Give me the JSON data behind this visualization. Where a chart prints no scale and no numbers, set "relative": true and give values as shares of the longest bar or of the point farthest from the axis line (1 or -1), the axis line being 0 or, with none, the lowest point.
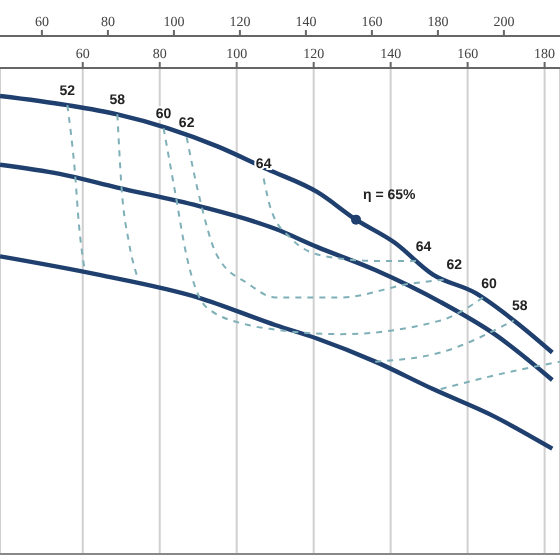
{
  "chart_data": {
    "type": "line",
    "relative": true,
    "xlim": [
      38.5,
      184
    ],
    "xticks": [
      60,
      80,
      100,
      120,
      140,
      160,
      180
    ],
    "x2lim": [
      47.3,
      217
    ],
    "x2ticks": [
      60,
      80,
      100,
      120,
      140,
      160,
      180,
      200
    ],
    "grid": "x",
    "marker": "none",
    "line_style": "solid",
    "series": [
      {
        "color": "#1f3f6e",
        "x": [
          38.5,
          56,
          69,
          82,
          95,
          108,
          121,
          131,
          141,
          151,
          162,
          172,
          182
        ],
        "values": [
          1.0,
          0.98,
          0.96,
          0.93,
          0.89,
          0.84,
          0.79,
          0.73,
          0.68,
          0.61,
          0.57,
          0.51,
          0.44
        ]
      },
      {
        "color": "#1f3f6e",
        "x": [
          38.5,
          54,
          69,
          90,
          110,
          121,
          136,
          153,
          167,
          182
        ],
        "values": [
          0.85,
          0.83,
          0.8,
          0.76,
          0.71,
          0.67,
          0.62,
          0.55,
          0.48,
          0.38
        ]
      },
      {
        "color": "#1f3f6e",
        "x": [
          38.5,
          64,
          90,
          110,
          121,
          136,
          151,
          167,
          182
        ],
        "values": [
          0.65,
          0.61,
          0.56,
          0.5,
          0.47,
          0.42,
          0.36,
          0.3,
          0.23
        ]
      },
      {
        "name": "52",
        "color": "#7fb0b8",
        "line_style": "dashed",
        "x": [
          56,
          58,
          59,
          60.5,
          100,
          153,
          167,
          184
        ],
        "values": [
          0.98,
          0.83,
          0.72,
          0.62,
          null,
          0.36,
          0.39,
          0.42
        ]
      },
      {
        "name": "58",
        "color": "#7fb0b8",
        "line_style": "dashed",
        "x": [
          69,
          70,
          72,
          74,
          100,
          136,
          153,
          172
        ],
        "values": [
          0.96,
          0.81,
          0.68,
          0.61,
          null,
          0.42,
          0.44,
          0.51
        ]
      },
      {
        "name": "60",
        "color": "#7fb0b8",
        "line_style": "dashed",
        "x": [
          81,
          84,
          87,
          92,
          103,
          110,
          127,
          153,
          164
        ],
        "values": [
          0.93,
          0.79,
          0.65,
          0.54,
          0.5,
          0.49,
          0.48,
          0.51,
          0.56
        ]
      },
      {
        "name": "62",
        "color": "#7fb0b8",
        "line_style": "dashed",
        "x": [
          87,
          90,
          95,
          103,
          110,
          127,
          145,
          155
        ],
        "values": [
          0.91,
          0.79,
          0.65,
          0.59,
          0.56,
          0.56,
          0.59,
          0.6
        ]
      },
      {
        "name": "64",
        "color": "#7fb0b8",
        "line_style": "dashed",
        "x": [
          107,
          109,
          114,
          123,
          136,
          147
        ],
        "values": [
          0.82,
          0.75,
          0.69,
          0.65,
          0.64,
          0.64
        ]
      },
      {
        "name": "η = 65%",
        "type": "scatter",
        "marker": "circle",
        "color": "#1f3f6e",
        "x": [
          131
        ],
        "values": [
          0.73
        ]
      }
    ]
  }
}
